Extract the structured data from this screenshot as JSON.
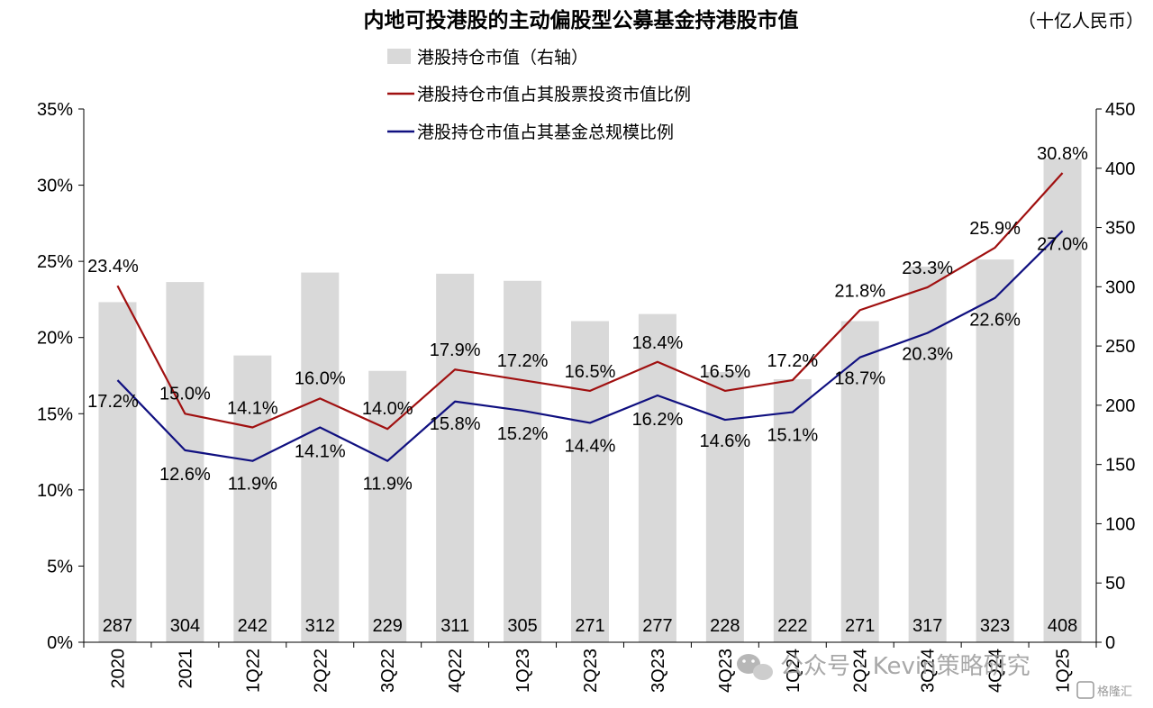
{
  "chart_data": {
    "type": "bar",
    "title": "内地可投港股的主动偏股型公募基金持港股市值",
    "unit": "（十亿人民币）",
    "categories": [
      "2020",
      "2021",
      "1Q22",
      "2Q22",
      "3Q22",
      "4Q22",
      "1Q23",
      "2Q23",
      "3Q23",
      "4Q23",
      "1Q24",
      "2Q24",
      "3Q24",
      "4Q24",
      "1Q25"
    ],
    "bar_series": {
      "name": "港股持仓市值（右轴）",
      "values": [
        287,
        304,
        242,
        312,
        229,
        311,
        305,
        271,
        277,
        228,
        222,
        271,
        317,
        323,
        408
      ],
      "color": "#d9d9d9",
      "axis": "right"
    },
    "line_series": [
      {
        "name": "港股持仓市值占其股票投资市值比例",
        "values": [
          23.4,
          15.0,
          14.1,
          16.0,
          14.0,
          17.9,
          17.2,
          16.5,
          18.4,
          16.5,
          17.2,
          21.8,
          23.3,
          25.9,
          30.8
        ],
        "labels": [
          "23.4%",
          "15.0%",
          "14.1%",
          "16.0%",
          "14.0%",
          "17.9%",
          "17.2%",
          "16.5%",
          "18.4%",
          "16.5%",
          "17.2%",
          "21.8%",
          "23.3%",
          "25.9%",
          "30.8%"
        ],
        "color": "#a01010",
        "axis": "left"
      },
      {
        "name": "港股持仓市值占其基金总规模比例",
        "values": [
          17.2,
          12.6,
          11.9,
          14.1,
          11.9,
          15.8,
          15.2,
          14.4,
          16.2,
          14.6,
          15.1,
          18.7,
          20.3,
          22.6,
          27.0
        ],
        "labels": [
          "17.2%",
          "12.6%",
          "11.9%",
          "14.1%",
          "11.9%",
          "15.8%",
          "15.2%",
          "14.4%",
          "16.2%",
          "14.6%",
          "15.1%",
          "18.7%",
          "20.3%",
          "22.6%",
          "27.0%"
        ],
        "color": "#101080",
        "axis": "left"
      }
    ],
    "left_axis": {
      "ylim": [
        0,
        35
      ],
      "ticks": [
        "0%",
        "5%",
        "10%",
        "15%",
        "20%",
        "25%",
        "30%",
        "35%"
      ]
    },
    "right_axis": {
      "ylim": [
        0,
        450
      ],
      "ticks": [
        "0",
        "50",
        "100",
        "150",
        "200",
        "250",
        "300",
        "350",
        "400",
        "450"
      ]
    },
    "legend_position": "top-left",
    "grid": false
  },
  "watermark": {
    "text": "公众号 · Kevin策略研究",
    "logo_text": "格隆汇"
  }
}
